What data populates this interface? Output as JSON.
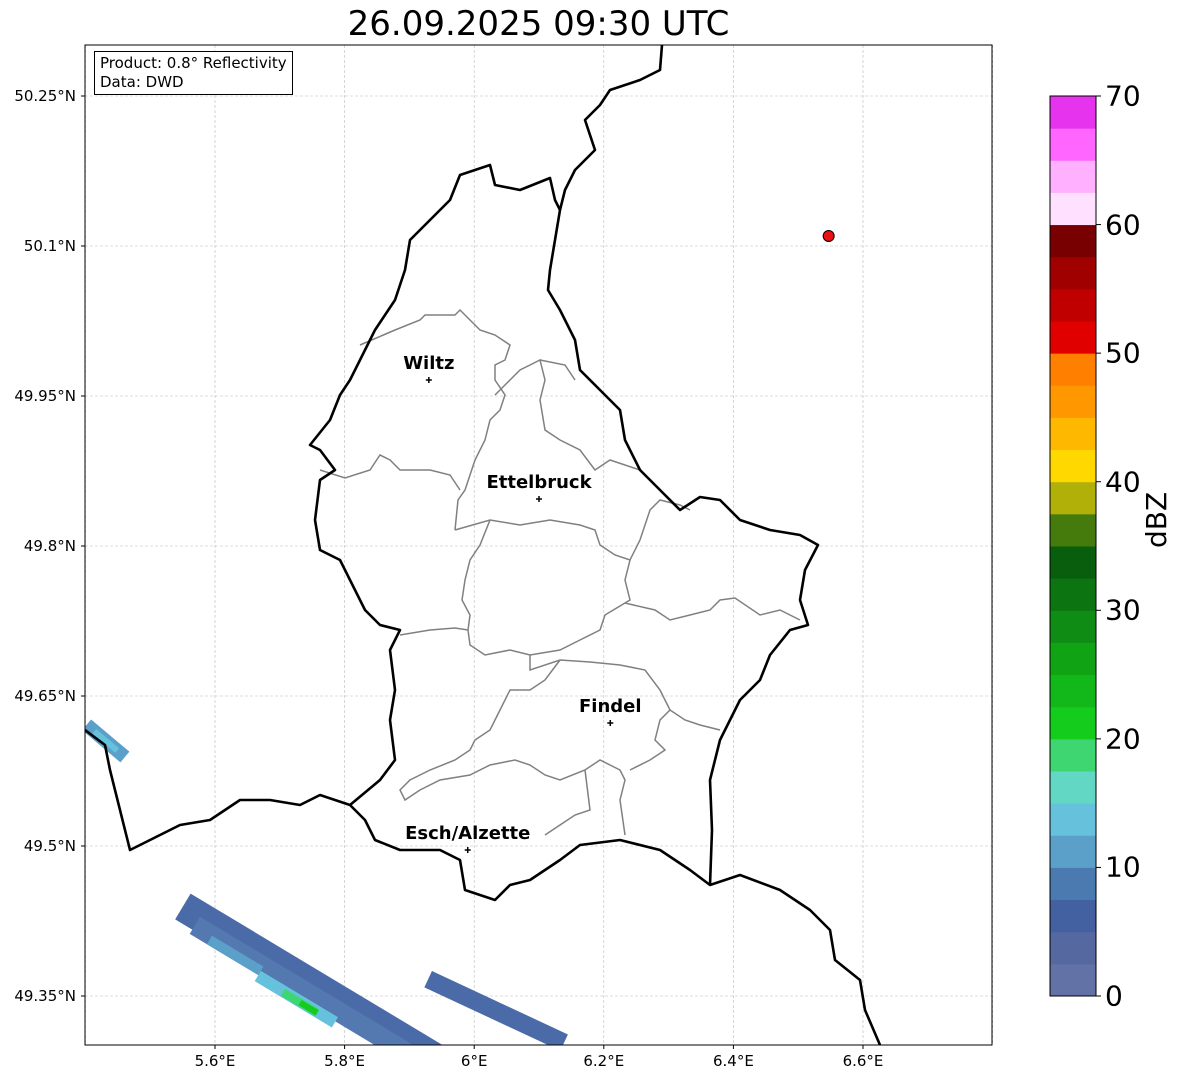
{
  "title": "26.09.2025 09:30 UTC",
  "info": {
    "product": "Product: 0.8° Reflectivity",
    "data": "Data: DWD"
  },
  "axes": {
    "x_ticks": [
      "5.6°E",
      "5.8°E",
      "6°E",
      "6.2°E",
      "6.4°E",
      "6.6°E"
    ],
    "y_ticks": [
      "50.25°N",
      "50.1°N",
      "49.95°N",
      "49.8°N",
      "49.65°N",
      "49.5°N",
      "49.35°N"
    ]
  },
  "cities": [
    {
      "name": "Wiltz",
      "lon": 5.93,
      "lat": 49.966
    },
    {
      "name": "Ettelbruck",
      "lon": 6.1,
      "lat": 49.847
    },
    {
      "name": "Findel",
      "lon": 6.21,
      "lat": 49.623
    },
    {
      "name": "Esch/Alzette",
      "lon": 5.99,
      "lat": 49.496
    }
  ],
  "marker": {
    "lon": 6.547,
    "lat": 50.11,
    "color": "#ee1111"
  },
  "colorbar": {
    "label": "dBZ",
    "min": 0,
    "max": 70,
    "step": 2.5,
    "ticks": [
      "0",
      "10",
      "20",
      "30",
      "40",
      "50",
      "60",
      "70"
    ],
    "colors": [
      "#6272a6",
      "#5568a0",
      "#4360a0",
      "#4a7ab0",
      "#5aa0c8",
      "#66c2dc",
      "#62d8c4",
      "#3ed670",
      "#14cc1c",
      "#12b81a",
      "#10a414",
      "#0e8c14",
      "#0c7410",
      "#085e0c",
      "#457a0c",
      "#b0b008",
      "#ffd800",
      "#ffb800",
      "#ff9800",
      "#ff8000",
      "#e00000",
      "#c00000",
      "#a00000",
      "#780000",
      "#ffe0ff",
      "#ffb0ff",
      "#ff66ff",
      "#e633ee"
    ]
  }
}
